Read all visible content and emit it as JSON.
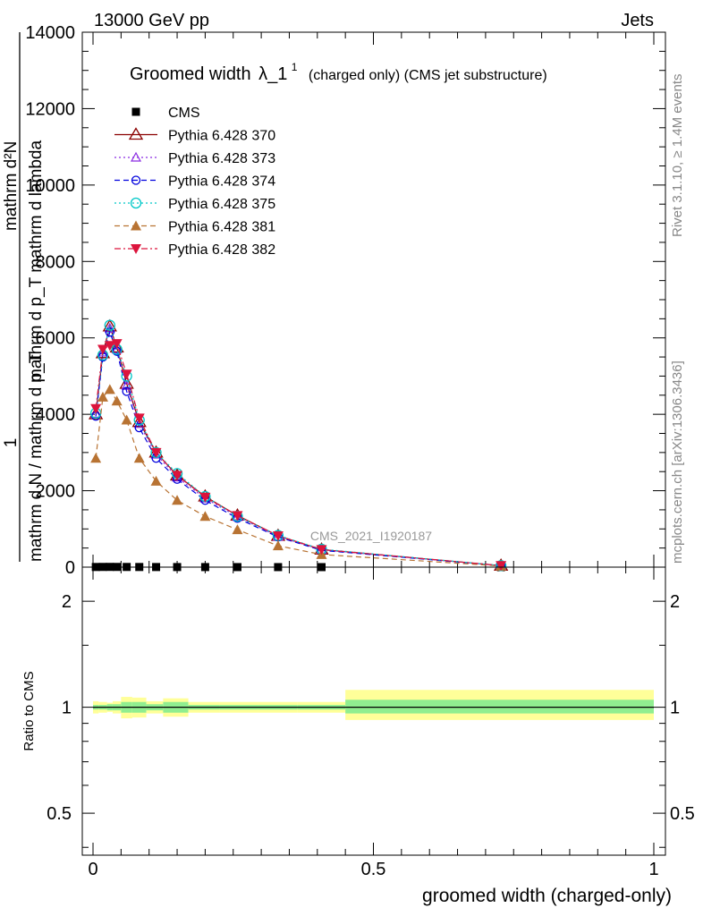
{
  "header": {
    "left": "13000 GeV pp",
    "right": "Jets"
  },
  "side_labels": {
    "rivet": "Rivet 3.1.10, ≥ 1.4M events",
    "mcplots": "mcplots.cern.ch [arXiv:1306.3436]"
  },
  "chart_data": [
    {
      "type": "line",
      "title_main": "Groomed width",
      "title_symbol": "λ_1",
      "title_sup": "1",
      "title_tail": "(charged only) (CMS jet substructure)",
      "ylabel_lines": [
        "mathrm d²N",
        "mathrm d p_T mathrm d lambda",
        "1",
        "mathrm d N / mathrm d p_T"
      ],
      "watermark": "CMS_2021_I1920187",
      "xlim": [
        0,
        1
      ],
      "ylim": [
        0,
        14000
      ],
      "yticks": [
        0,
        2000,
        4000,
        6000,
        8000,
        10000,
        12000,
        14000
      ],
      "ytick_labels": [
        "0",
        "2000",
        "4000",
        "6000",
        "8000",
        "10000",
        "12000",
        "14000"
      ],
      "x": [
        0.005,
        0.0175,
        0.03,
        0.0425,
        0.06,
        0.0825,
        0.1125,
        0.15,
        0.2,
        0.2575,
        0.33,
        0.4075,
        0.7275
      ],
      "series": [
        {
          "name": "CMS",
          "color": "#000000",
          "marker": "square",
          "line": "none",
          "values": [
            4.0,
            5.6,
            6.3,
            5.7,
            4.7,
            3.7,
            2.9,
            2.3,
            1.8,
            1.3,
            0.8,
            0.45,
            0.04
          ]
        },
        {
          "name": "Pythia 6.428 370",
          "color": "#8b0000",
          "marker": "triangle-up-open",
          "line": "solid",
          "values": [
            4000,
            5600,
            6300,
            5750,
            4800,
            3800,
            3000,
            2400,
            1850,
            1350,
            820,
            460,
            40
          ]
        },
        {
          "name": "Pythia 6.428 373",
          "color": "#8a2be2",
          "marker": "triangle-up-open-small",
          "line": "dotted",
          "values": [
            4020,
            5620,
            6250,
            5700,
            4750,
            3750,
            2950,
            2350,
            1800,
            1320,
            800,
            455,
            38
          ]
        },
        {
          "name": "Pythia 6.428 374",
          "color": "#0000dd",
          "marker": "circle-open",
          "line": "dashed",
          "values": [
            3950,
            5500,
            6150,
            5650,
            4600,
            3650,
            2850,
            2300,
            1750,
            1280,
            790,
            440,
            37
          ]
        },
        {
          "name": "Pythia 6.428 375",
          "color": "#00c8c8",
          "marker": "circle-open-large",
          "line": "dotted",
          "values": [
            4030,
            5550,
            6330,
            5700,
            5000,
            3850,
            3000,
            2450,
            1850,
            1330,
            830,
            470,
            40
          ]
        },
        {
          "name": "Pythia 6.428 381",
          "color": "#b87333",
          "marker": "triangle-up-filled",
          "line": "dashed",
          "values": [
            2850,
            4450,
            4650,
            4350,
            3850,
            2850,
            2250,
            1750,
            1330,
            980,
            560,
            330,
            30
          ]
        },
        {
          "name": "Pythia 6.428 382",
          "color": "#dc143c",
          "marker": "triangle-down-filled",
          "line": "dashdot",
          "values": [
            4150,
            5700,
            5800,
            5850,
            5050,
            3900,
            3000,
            2400,
            1830,
            1350,
            820,
            460,
            40
          ]
        }
      ]
    },
    {
      "type": "area",
      "ylabel": "Ratio to CMS",
      "xlabel": "groomed width (charged-only)",
      "xlim": [
        0,
        1
      ],
      "ylim": [
        0.38,
        2.5
      ],
      "log_y": true,
      "yticks": [
        0.5,
        1,
        2
      ],
      "ytick_labels": [
        "0.5",
        "1",
        "2"
      ],
      "xticks": [
        0,
        0.5,
        1
      ],
      "xtick_labels": [
        "0",
        "0.5",
        "1"
      ],
      "reference_line": 1,
      "bins": [
        {
          "lo": 0.0,
          "hi": 0.01,
          "inner": [
            0.985,
            1.015
          ],
          "outer": [
            0.96,
            1.04
          ]
        },
        {
          "lo": 0.01,
          "hi": 0.025,
          "inner": [
            0.985,
            1.015
          ],
          "outer": [
            0.965,
            1.035
          ]
        },
        {
          "lo": 0.025,
          "hi": 0.035,
          "inner": [
            0.98,
            1.02
          ],
          "outer": [
            0.97,
            1.03
          ]
        },
        {
          "lo": 0.035,
          "hi": 0.05,
          "inner": [
            0.98,
            1.02
          ],
          "outer": [
            0.96,
            1.04
          ]
        },
        {
          "lo": 0.05,
          "hi": 0.07,
          "inner": [
            0.965,
            1.035
          ],
          "outer": [
            0.93,
            1.07
          ]
        },
        {
          "lo": 0.07,
          "hi": 0.095,
          "inner": [
            0.965,
            1.035
          ],
          "outer": [
            0.935,
            1.065
          ]
        },
        {
          "lo": 0.095,
          "hi": 0.125,
          "inner": [
            0.98,
            1.02
          ],
          "outer": [
            0.96,
            1.04
          ]
        },
        {
          "lo": 0.125,
          "hi": 0.17,
          "inner": [
            0.965,
            1.035
          ],
          "outer": [
            0.94,
            1.06
          ]
        },
        {
          "lo": 0.17,
          "hi": 0.225,
          "inner": [
            0.985,
            1.015
          ],
          "outer": [
            0.965,
            1.035
          ]
        },
        {
          "lo": 0.225,
          "hi": 0.295,
          "inner": [
            0.985,
            1.015
          ],
          "outer": [
            0.965,
            1.035
          ]
        },
        {
          "lo": 0.295,
          "hi": 0.365,
          "inner": [
            0.985,
            1.015
          ],
          "outer": [
            0.965,
            1.035
          ]
        },
        {
          "lo": 0.365,
          "hi": 0.45,
          "inner": [
            0.985,
            1.015
          ],
          "outer": [
            0.965,
            1.035
          ]
        },
        {
          "lo": 0.45,
          "hi": 1.0,
          "inner": [
            0.96,
            1.05
          ],
          "outer": [
            0.92,
            1.12
          ]
        }
      ],
      "colors": {
        "inner": "#90ee90",
        "outer": "#ffff99"
      }
    }
  ]
}
